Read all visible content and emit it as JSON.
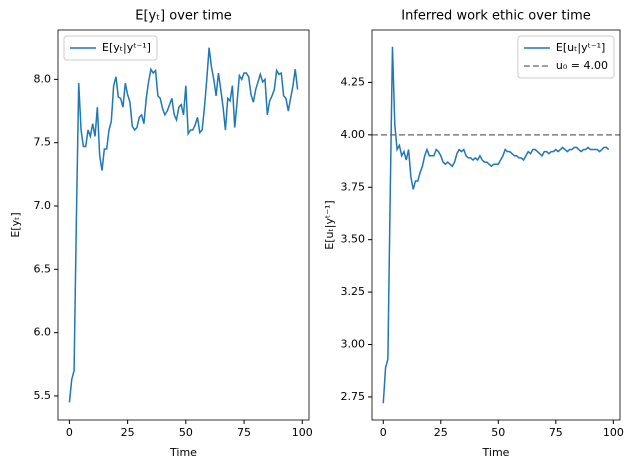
{
  "chart_data": [
    {
      "type": "line",
      "title": "E[yₜ] over time",
      "xlabel": "Time",
      "ylabel": "E[yₜ]",
      "x": [
        0,
        1,
        2,
        3,
        4,
        5,
        6,
        7,
        8,
        9,
        10,
        11,
        12,
        13,
        14,
        15,
        16,
        17,
        18,
        19,
        20,
        21,
        22,
        23,
        24,
        25,
        26,
        27,
        28,
        29,
        30,
        31,
        32,
        33,
        34,
        35,
        36,
        37,
        38,
        39,
        40,
        41,
        42,
        43,
        44,
        45,
        46,
        47,
        48,
        49,
        50,
        51,
        52,
        53,
        54,
        55,
        56,
        57,
        58,
        59,
        60,
        61,
        62,
        63,
        64,
        65,
        66,
        67,
        68,
        69,
        70,
        71,
        72,
        73,
        74,
        75,
        76,
        77,
        78,
        79,
        80,
        81,
        82,
        83,
        84,
        85,
        86,
        87,
        88,
        89,
        90,
        91,
        92,
        93,
        94,
        95,
        96,
        97,
        98
      ],
      "series": [
        {
          "name": "E[yₜ|yᵗ⁻¹]",
          "color": "#1f77b4",
          "values": [
            5.45,
            5.63,
            5.7,
            6.9,
            7.97,
            7.6,
            7.47,
            7.47,
            7.6,
            7.55,
            7.65,
            7.55,
            7.78,
            7.4,
            7.28,
            7.45,
            7.45,
            7.6,
            7.67,
            7.95,
            8.02,
            7.86,
            7.85,
            7.78,
            7.97,
            7.88,
            7.82,
            7.63,
            7.6,
            7.62,
            7.7,
            7.72,
            7.65,
            7.85,
            7.98,
            8.08,
            8.05,
            8.07,
            7.87,
            7.85,
            7.77,
            7.72,
            7.75,
            7.8,
            7.85,
            7.72,
            7.68,
            7.78,
            7.8,
            7.72,
            7.95,
            7.57,
            7.6,
            7.6,
            7.64,
            7.7,
            7.58,
            7.6,
            7.78,
            8.0,
            8.25,
            8.1,
            8.0,
            7.87,
            8.05,
            7.92,
            7.78,
            7.6,
            7.85,
            7.83,
            7.95,
            7.62,
            7.82,
            8.03,
            8.0,
            8.05,
            8.05,
            8.02,
            7.88,
            7.82,
            7.92,
            7.98,
            8.04,
            7.98,
            8.0,
            7.72,
            7.83,
            7.87,
            7.92,
            8.07,
            8.04,
            8.05,
            7.87,
            7.85,
            7.75,
            7.85,
            7.95,
            8.08,
            7.92
          ]
        }
      ],
      "xlim": [
        -4.9,
        102.9
      ],
      "xticks": [
        0,
        25,
        50,
        75,
        100
      ],
      "ylim": [
        5.31,
        8.39
      ],
      "yticks": [
        5.5,
        {
          "value": 6,
          "label": "6.0"
        },
        6.5,
        {
          "value": 7,
          "label": "7.0"
        },
        7.5,
        {
          "value": 8,
          "label": "8.0"
        }
      ],
      "legend": "upper-left"
    },
    {
      "type": "line",
      "title": "Inferred work ethic over time",
      "xlabel": "Time",
      "ylabel": "E[uₜ|yᵗ⁻¹]",
      "x": [
        0,
        1,
        2,
        3,
        4,
        5,
        6,
        7,
        8,
        9,
        10,
        11,
        12,
        13,
        14,
        15,
        16,
        17,
        18,
        19,
        20,
        21,
        22,
        23,
        24,
        25,
        26,
        27,
        28,
        29,
        30,
        31,
        32,
        33,
        34,
        35,
        36,
        37,
        38,
        39,
        40,
        41,
        42,
        43,
        44,
        45,
        46,
        47,
        48,
        49,
        50,
        51,
        52,
        53,
        54,
        55,
        56,
        57,
        58,
        59,
        60,
        61,
        62,
        63,
        64,
        65,
        66,
        67,
        68,
        69,
        70,
        71,
        72,
        73,
        74,
        75,
        76,
        77,
        78,
        79,
        80,
        81,
        82,
        83,
        84,
        85,
        86,
        87,
        88,
        89,
        90,
        91,
        92,
        93,
        94,
        95,
        96,
        97,
        98
      ],
      "series": [
        {
          "name": "E[uₜ|yᵗ⁻¹]",
          "color": "#1f77b4",
          "values": [
            2.72,
            2.89,
            2.93,
            3.7,
            4.42,
            4.05,
            3.93,
            3.95,
            3.9,
            3.92,
            3.88,
            3.93,
            3.8,
            3.74,
            3.78,
            3.78,
            3.82,
            3.85,
            3.9,
            3.93,
            3.9,
            3.9,
            3.9,
            3.93,
            3.92,
            3.9,
            3.87,
            3.86,
            3.87,
            3.86,
            3.85,
            3.87,
            3.91,
            3.93,
            3.92,
            3.93,
            3.9,
            3.89,
            3.89,
            3.88,
            3.89,
            3.88,
            3.9,
            3.88,
            3.87,
            3.87,
            3.86,
            3.85,
            3.86,
            3.86,
            3.86,
            3.88,
            3.9,
            3.93,
            3.92,
            3.92,
            3.91,
            3.9,
            3.9,
            3.89,
            3.89,
            3.88,
            3.9,
            3.92,
            3.91,
            3.93,
            3.93,
            3.92,
            3.91,
            3.9,
            3.92,
            3.92,
            3.91,
            3.92,
            3.92,
            3.93,
            3.92,
            3.93,
            3.94,
            3.93,
            3.92,
            3.93,
            3.93,
            3.94,
            3.94,
            3.93,
            3.92,
            3.93,
            3.93,
            3.94,
            3.93,
            3.93,
            3.93,
            3.93,
            3.92,
            3.93,
            3.94,
            3.94,
            3.93
          ]
        }
      ],
      "reference_line": {
        "value": 4,
        "name": "u₀ = 4.00",
        "color": "#7f7f7f"
      },
      "xlim": [
        -4.9,
        102.9
      ],
      "xticks": [
        0,
        25,
        50,
        75,
        100
      ],
      "ylim": [
        2.64,
        4.5
      ],
      "yticks": [
        2.75,
        {
          "value": 3,
          "label": "3.00"
        },
        3.25,
        {
          "value": 3.5,
          "label": "3.50"
        },
        3.75,
        {
          "value": 4,
          "label": "4.00"
        },
        4.25
      ],
      "legend": "upper-right"
    }
  ]
}
